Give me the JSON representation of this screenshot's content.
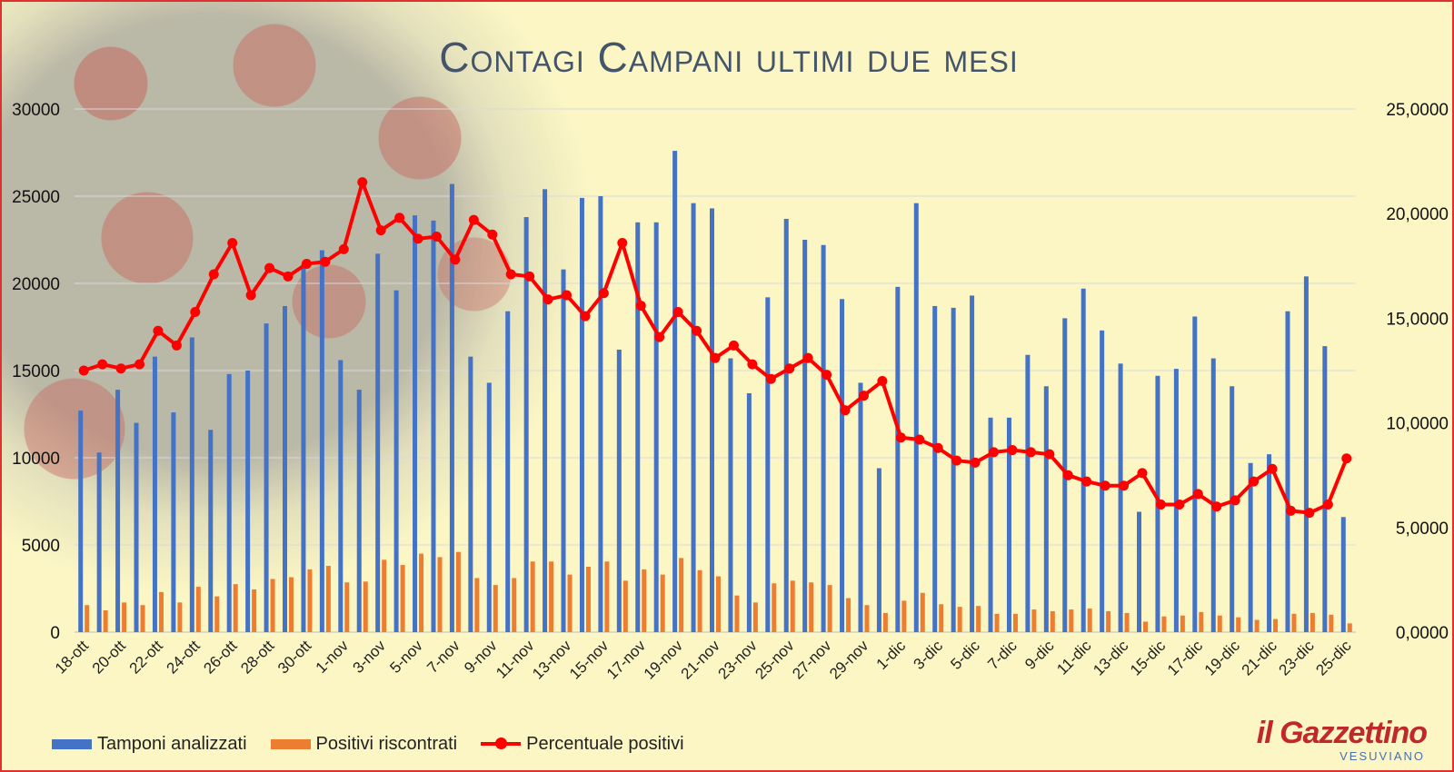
{
  "title": "Contagi Campani ultimi due mesi",
  "logo": {
    "main": "il Gazzettino",
    "sub": "VESUVIANO"
  },
  "colors": {
    "tamponi": "#4472c4",
    "positivi": "#ed7d31",
    "percentuale": "#ff0000",
    "background": "#fbf6c4",
    "frame": "#e03030",
    "title": "#44546a"
  },
  "legend": [
    {
      "label": "Tamponi analizzati",
      "kind": "bar",
      "color": "#4472c4"
    },
    {
      "label": "Positivi riscontrati",
      "kind": "bar",
      "color": "#ed7d31"
    },
    {
      "label": "Percentuale positivi",
      "kind": "line",
      "color": "#ff0000"
    }
  ],
  "chart_data": {
    "type": "bar",
    "title": "Contagi Campani ultimi due mesi",
    "xlabel": "",
    "ylabel": "",
    "ylim": [
      0,
      30000
    ],
    "y2lim": [
      0,
      25
    ],
    "yticks": [
      "0",
      "5000",
      "10000",
      "15000",
      "20000",
      "25000",
      "30000"
    ],
    "y2ticks": [
      "0,0000",
      "5,0000",
      "10,0000",
      "15,0000",
      "20,0000",
      "25,0000"
    ],
    "grid": true,
    "legend_position": "bottom-left",
    "xticklabels": [
      "18-ott",
      "20-ott",
      "22-ott",
      "24-ott",
      "26-ott",
      "28-ott",
      "30-ott",
      "1-nov",
      "3-nov",
      "5-nov",
      "7-nov",
      "9-nov",
      "11-nov",
      "13-nov",
      "15-nov",
      "17-nov",
      "19-nov",
      "21-nov",
      "23-nov",
      "25-nov",
      "27-nov",
      "29-nov",
      "1-dic",
      "3-dic",
      "5-dic",
      "7-dic",
      "9-dic",
      "11-dic",
      "13-dic",
      "15-dic",
      "17-dic",
      "19-dic",
      "21-dic",
      "23-dic",
      "25-dic"
    ],
    "categories": [
      "18-ott",
      "19-ott",
      "20-ott",
      "21-ott",
      "22-ott",
      "23-ott",
      "24-ott",
      "25-ott",
      "26-ott",
      "27-ott",
      "28-ott",
      "29-ott",
      "30-ott",
      "31-ott",
      "1-nov",
      "2-nov",
      "3-nov",
      "4-nov",
      "5-nov",
      "6-nov",
      "7-nov",
      "8-nov",
      "9-nov",
      "10-nov",
      "11-nov",
      "12-nov",
      "13-nov",
      "14-nov",
      "15-nov",
      "16-nov",
      "17-nov",
      "18-nov",
      "19-nov",
      "20-nov",
      "21-nov",
      "22-nov",
      "23-nov",
      "24-nov",
      "25-nov",
      "26-nov",
      "27-nov",
      "28-nov",
      "29-nov",
      "30-nov",
      "1-dic",
      "2-dic",
      "3-dic",
      "4-dic",
      "5-dic",
      "6-dic",
      "7-dic",
      "8-dic",
      "9-dic",
      "10-dic",
      "11-dic",
      "12-dic",
      "13-dic",
      "14-dic",
      "15-dic",
      "16-dic",
      "17-dic",
      "18-dic",
      "19-dic",
      "20-dic",
      "21-dic",
      "22-dic",
      "23-dic",
      "24-dic",
      "25-dic"
    ],
    "series": [
      {
        "name": "Tamponi analizzati",
        "type": "bar",
        "axis": "left",
        "values": [
          12700,
          10300,
          13900,
          12000,
          15800,
          12600,
          16900,
          11600,
          14800,
          15000,
          17700,
          18700,
          21100,
          21900,
          15600,
          13900,
          21700,
          19600,
          23900,
          23600,
          25700,
          15800,
          14300,
          18400,
          23800,
          25400,
          20800,
          24900,
          25000,
          16200,
          23500,
          23500,
          27600,
          24600,
          24300,
          15700,
          13700,
          19200,
          23700,
          22500,
          22200,
          19100,
          14300,
          9400,
          19800,
          24600,
          18700,
          18600,
          19300,
          12300,
          12300,
          15900,
          14100,
          18000,
          19700,
          17300,
          15400,
          6900,
          14700,
          15100,
          18100,
          15700,
          14100,
          9700,
          10200,
          18400,
          20400,
          16400,
          6600
        ]
      },
      {
        "name": "Positivi riscontrati",
        "type": "bar",
        "axis": "left",
        "values": [
          1550,
          1250,
          1700,
          1550,
          2300,
          1700,
          2600,
          2050,
          2750,
          2450,
          3050,
          3150,
          3600,
          3800,
          2850,
          2900,
          4150,
          3850,
          4500,
          4300,
          4600,
          3100,
          2700,
          3100,
          4050,
          4050,
          3300,
          3750,
          4050,
          2950,
          3600,
          3300,
          4250,
          3550,
          3200,
          2100,
          1700,
          2800,
          2950,
          2850,
          2700,
          1950,
          1550,
          1100,
          1800,
          2250,
          1600,
          1450,
          1500,
          1050,
          1050,
          1300,
          1200,
          1300,
          1350,
          1200,
          1100,
          600,
          900,
          950,
          1150,
          950,
          850,
          700,
          750,
          1050,
          1100,
          1000,
          500
        ]
      },
      {
        "name": "Percentuale positivi",
        "type": "line",
        "axis": "right",
        "values": [
          12.5,
          12.8,
          12.6,
          12.8,
          14.4,
          13.7,
          15.3,
          17.1,
          18.6,
          16.1,
          17.4,
          17.0,
          17.6,
          17.7,
          18.3,
          21.5,
          19.2,
          19.8,
          18.8,
          18.9,
          17.8,
          19.7,
          19.0,
          17.1,
          17.0,
          15.9,
          16.1,
          15.1,
          16.2,
          18.6,
          15.6,
          14.1,
          15.3,
          14.4,
          13.1,
          13.7,
          12.8,
          12.1,
          12.6,
          13.1,
          12.3,
          10.6,
          11.3,
          12.0,
          9.3,
          9.2,
          8.8,
          8.2,
          8.1,
          8.6,
          8.7,
          8.6,
          8.5,
          7.5,
          7.2,
          7.0,
          7.0,
          7.6,
          6.1,
          6.1,
          6.6,
          6.0,
          6.3,
          7.2,
          7.8,
          5.8,
          5.7,
          6.1,
          8.3
        ]
      }
    ]
  }
}
